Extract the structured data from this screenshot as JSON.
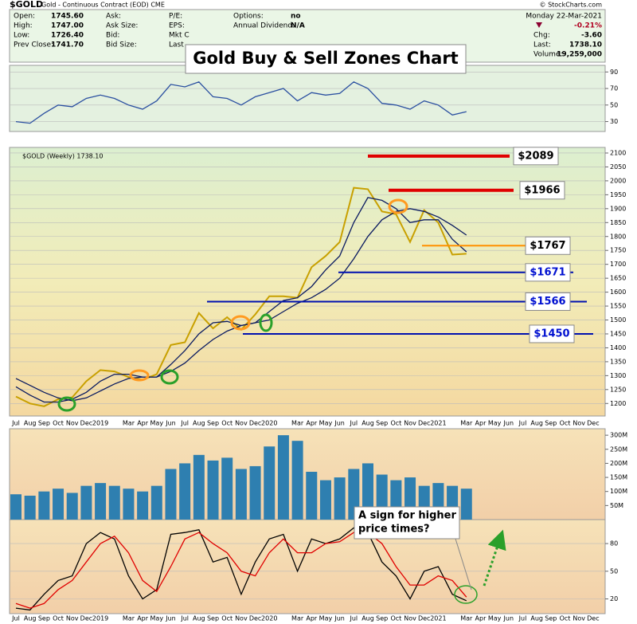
{
  "quote": {
    "symbol": "$GOLD",
    "description": "Gold - Continuous Contract (EOD) CME",
    "credit": "© StockCharts.com",
    "date": "Monday  22-Mar-2021",
    "col1": [
      [
        "Open:",
        "1745.60"
      ],
      [
        "High:",
        "1747.00"
      ],
      [
        "Low:",
        "1726.40"
      ],
      [
        "Prev Close:",
        "1741.70"
      ]
    ],
    "col2": [
      "Ask:",
      "Ask Size:",
      "Bid:",
      "Bid Size:"
    ],
    "col3": [
      "P/E:",
      "EPS:",
      "Mkt C",
      "Last"
    ],
    "col4": [
      [
        "Options:",
        "no"
      ],
      [
        "Annual Dividend:",
        "N/A"
      ]
    ],
    "change_pct": "-0.21%",
    "col5": [
      [
        "Chg:",
        "-3.60"
      ],
      [
        "Last:",
        "1738.10"
      ],
      [
        "Volume:",
        "19,259,000"
      ]
    ]
  },
  "chart_data": [
    {
      "type": "line",
      "ylim": [
        18,
        98
      ],
      "yticks": [
        90,
        70,
        50,
        30
      ],
      "grid": true,
      "series": [
        {
          "color": "#2a4fa0",
          "values": [
            30,
            28,
            40,
            50,
            48,
            58,
            62,
            58,
            50,
            45,
            55,
            75,
            72,
            78,
            60,
            58,
            50,
            60,
            65,
            70,
            55,
            65,
            62,
            64,
            78,
            70,
            52,
            50,
            45,
            55,
            50,
            38,
            42,
            null,
            null,
            null,
            null,
            null,
            null,
            null,
            null,
            null
          ]
        }
      ]
    },
    {
      "type": "line",
      "title": "Gold Buy & Sell Zones Chart",
      "legend": "$GOLD (Weekly) 1738.10",
      "categories": [
        "Jul",
        "Aug",
        "Sep",
        "Oct",
        "Nov",
        "Dec",
        "2019",
        null,
        "Mar",
        "Apr",
        "May",
        "Jun",
        "Jul",
        "Aug",
        "Sep",
        "Oct",
        "Nov",
        "Dec",
        "2020",
        null,
        "Mar",
        "Apr",
        "May",
        "Jun",
        "Jul",
        "Aug",
        "Sep",
        "Oct",
        "Nov",
        "Dec",
        "2021",
        null,
        "Mar",
        "Apr",
        "May",
        "Jun",
        "Jul",
        "Aug",
        "Sep",
        "Oct",
        "Nov",
        "Dec"
      ],
      "ylim": [
        1155,
        2120
      ],
      "yticks": [
        1200,
        1250,
        1300,
        1350,
        1400,
        1450,
        1500,
        1550,
        1600,
        1650,
        1700,
        1750,
        1800,
        1850,
        1900,
        1950,
        2000,
        2050,
        2100
      ],
      "grid": true,
      "series": [
        {
          "color": "#c8a000",
          "values": [
            1225,
            1200,
            1190,
            1215,
            1222,
            1280,
            1320,
            1315,
            1295,
            1285,
            1305,
            1410,
            1420,
            1525,
            1470,
            1510,
            1465,
            1520,
            1585,
            1585,
            1580,
            1690,
            1730,
            1780,
            1975,
            1970,
            1890,
            1880,
            1780,
            1895,
            1850,
            1735,
            1738.1,
            null,
            null,
            null,
            null,
            null,
            null,
            null,
            null,
            null
          ]
        },
        {
          "color": "#0a1a60",
          "values": [
            1260,
            1230,
            1205,
            1205,
            1215,
            1240,
            1280,
            1305,
            1305,
            1295,
            1295,
            1340,
            1390,
            1450,
            1490,
            1495,
            1480,
            1490,
            1530,
            1570,
            1580,
            1620,
            1680,
            1730,
            1850,
            1940,
            1930,
            1900,
            1850,
            1860,
            1860,
            1790,
            1745,
            null,
            null,
            null,
            null,
            null,
            null,
            null,
            null,
            null
          ]
        },
        {
          "color": "#0a1a60",
          "values": [
            1290,
            1265,
            1240,
            1220,
            1210,
            1220,
            1245,
            1270,
            1290,
            1295,
            1295,
            1315,
            1345,
            1390,
            1430,
            1460,
            1480,
            1490,
            1500,
            1530,
            1560,
            1580,
            1610,
            1650,
            1720,
            1800,
            1860,
            1890,
            1900,
            1890,
            1870,
            1840,
            1805,
            null,
            null,
            null,
            null,
            null,
            null,
            null,
            null,
            null
          ]
        }
      ],
      "levels": [
        {
          "value": 2089,
          "label": "$2089",
          "color": "#e00000",
          "text_color": "#000"
        },
        {
          "value": 1966,
          "label": "$1966",
          "color": "#e00000",
          "text_color": "#000"
        },
        {
          "value": 1767,
          "label": "$1767",
          "color": "#ff9000",
          "text_color": "#000"
        },
        {
          "value": 1671,
          "label": "$1671",
          "color": "#0010b0",
          "text_color": "#0010d0"
        },
        {
          "value": 1566,
          "label": "$1566",
          "color": "#0010b0",
          "text_color": "#0010d0"
        },
        {
          "value": 1450,
          "label": "$1450",
          "color": "#0010b0",
          "text_color": "#0010d0"
        }
      ]
    },
    {
      "type": "bar",
      "ylim": [
        0,
        323000000
      ],
      "yticks": [
        {
          "value": 50000000,
          "label": "50M"
        },
        {
          "value": 100000000,
          "label": "100M"
        },
        {
          "value": 150000000,
          "label": "150M"
        },
        {
          "value": 200000000,
          "label": "200M"
        },
        {
          "value": 250000000,
          "label": "250M"
        },
        {
          "value": 300000000,
          "label": "300M"
        }
      ],
      "grid": false,
      "series": [
        {
          "color": "#2e7fb0",
          "values": [
            90000000,
            85000000,
            100000000,
            110000000,
            95000000,
            120000000,
            130000000,
            120000000,
            110000000,
            100000000,
            120000000,
            180000000,
            200000000,
            230000000,
            210000000,
            220000000,
            180000000,
            190000000,
            260000000,
            300000000,
            280000000,
            170000000,
            140000000,
            150000000,
            180000000,
            200000000,
            160000000,
            140000000,
            150000000,
            120000000,
            130000000,
            120000000,
            110000000,
            null,
            null,
            null,
            null,
            null,
            null,
            null,
            null,
            null
          ]
        }
      ]
    },
    {
      "type": "line",
      "annotation": [
        "A sign for higher",
        "price times?"
      ],
      "categories": [
        "Jul",
        "Aug",
        "Sep",
        "Oct",
        "Nov",
        "Dec",
        "2019",
        null,
        "Mar",
        "Apr",
        "May",
        "Jun",
        "Jul",
        "Aug",
        "Sep",
        "Oct",
        "Nov",
        "Dec",
        "2020",
        null,
        "Mar",
        "Apr",
        "May",
        "Jun",
        "Jul",
        "Aug",
        "Sep",
        "Oct",
        "Nov",
        "Dec",
        "2021",
        null,
        "Mar",
        "Apr",
        "May",
        "Jun",
        "Jul",
        "Aug",
        "Sep",
        "Oct",
        "Nov",
        "Dec"
      ],
      "ylim": [
        4,
        106
      ],
      "yticks": [
        20,
        50,
        80
      ],
      "grid": true,
      "series": [
        {
          "color": "#000000",
          "values": [
            10,
            8,
            25,
            40,
            45,
            80,
            92,
            85,
            45,
            20,
            30,
            90,
            92,
            95,
            60,
            65,
            25,
            60,
            85,
            90,
            50,
            85,
            80,
            85,
            97,
            92,
            60,
            45,
            20,
            50,
            55,
            25,
            18,
            null,
            null,
            null,
            null,
            null,
            null,
            null,
            null,
            null
          ]
        },
        {
          "color": "#e00000",
          "values": [
            15,
            10,
            15,
            30,
            40,
            60,
            80,
            88,
            70,
            40,
            28,
            55,
            85,
            92,
            80,
            70,
            50,
            45,
            70,
            85,
            70,
            70,
            80,
            82,
            92,
            92,
            80,
            55,
            35,
            35,
            45,
            40,
            22,
            null,
            null,
            null,
            null,
            null,
            null,
            null,
            null,
            null
          ]
        }
      ]
    }
  ]
}
